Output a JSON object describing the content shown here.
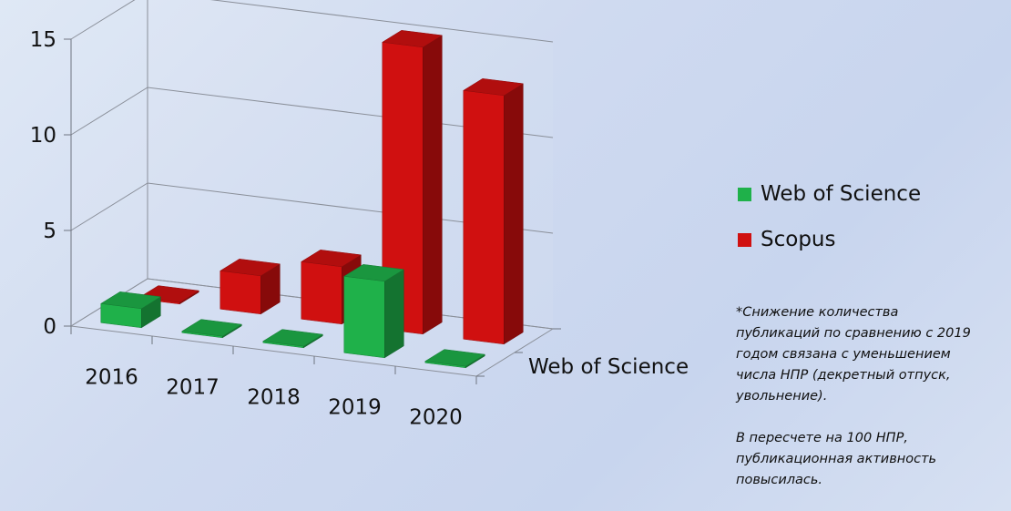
{
  "chart_data": {
    "type": "bar",
    "style": "3d-clustered",
    "categories": [
      "2016",
      "2017",
      "2018",
      "2019",
      "2020"
    ],
    "series": [
      {
        "name": "Web of Science",
        "values": [
          1,
          0,
          0,
          4,
          0
        ],
        "color": "#1fb14a"
      },
      {
        "name": "Scopus",
        "values": [
          0,
          2,
          3,
          15,
          13
        ],
        "color": "#d01010"
      }
    ],
    "y_ticks": [
      "0",
      "5",
      "10",
      "15"
    ],
    "ylim": [
      0,
      15
    ],
    "depth_axis_label": "Web of Science",
    "grid": true,
    "legend_position": "right"
  },
  "legend": {
    "items": [
      {
        "label": "Web of Science",
        "color": "#1fb14a"
      },
      {
        "label": "Scopus",
        "color": "#d01010"
      }
    ]
  },
  "note": {
    "lines1": [
      "*Снижение количества",
      "публикаций по сравнению с 2019",
      "годом связана с уменьшением",
      "числа НПР (декретный отпуск,",
      "увольнение)."
    ],
    "lines2": [
      "В пересчете на 100 НПР,",
      "публикационная активность",
      "повысилась."
    ]
  }
}
